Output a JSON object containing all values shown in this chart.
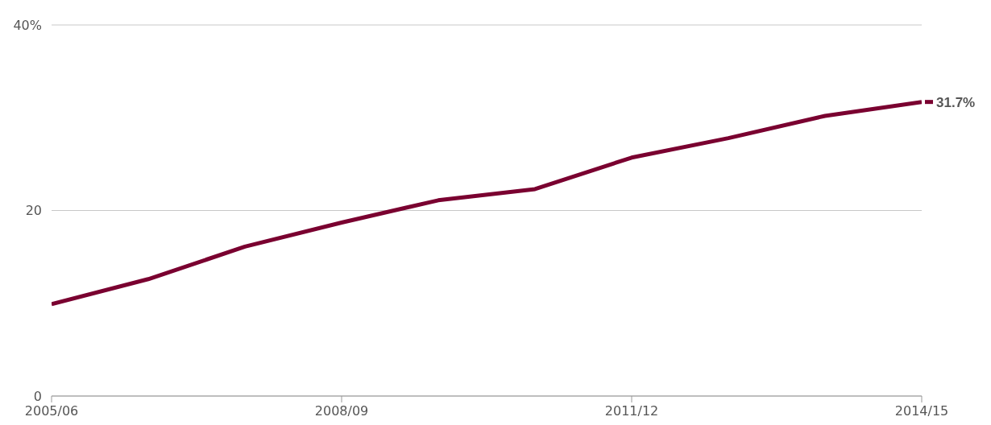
{
  "chart_data": {
    "type": "line",
    "categories": [
      "2005/06",
      null,
      null,
      "2008/09",
      null,
      null,
      "2011/12",
      null,
      null,
      "2014/15"
    ],
    "series": [
      {
        "color": "#7a0030",
        "values": [
          9.9,
          12.6,
          16.1,
          18.7,
          21.1,
          22.3,
          25.7,
          27.8,
          30.2,
          31.7
        ],
        "value_labels": [
          null,
          null,
          null,
          null,
          null,
          null,
          null,
          null,
          null,
          "31.7%"
        ]
      }
    ],
    "ylim": [
      0,
      40
    ],
    "yticks": [
      0,
      20,
      {
        "value": 40,
        "label": "40%"
      }
    ],
    "grid": "y",
    "marker": "none",
    "line_style": "solid"
  }
}
